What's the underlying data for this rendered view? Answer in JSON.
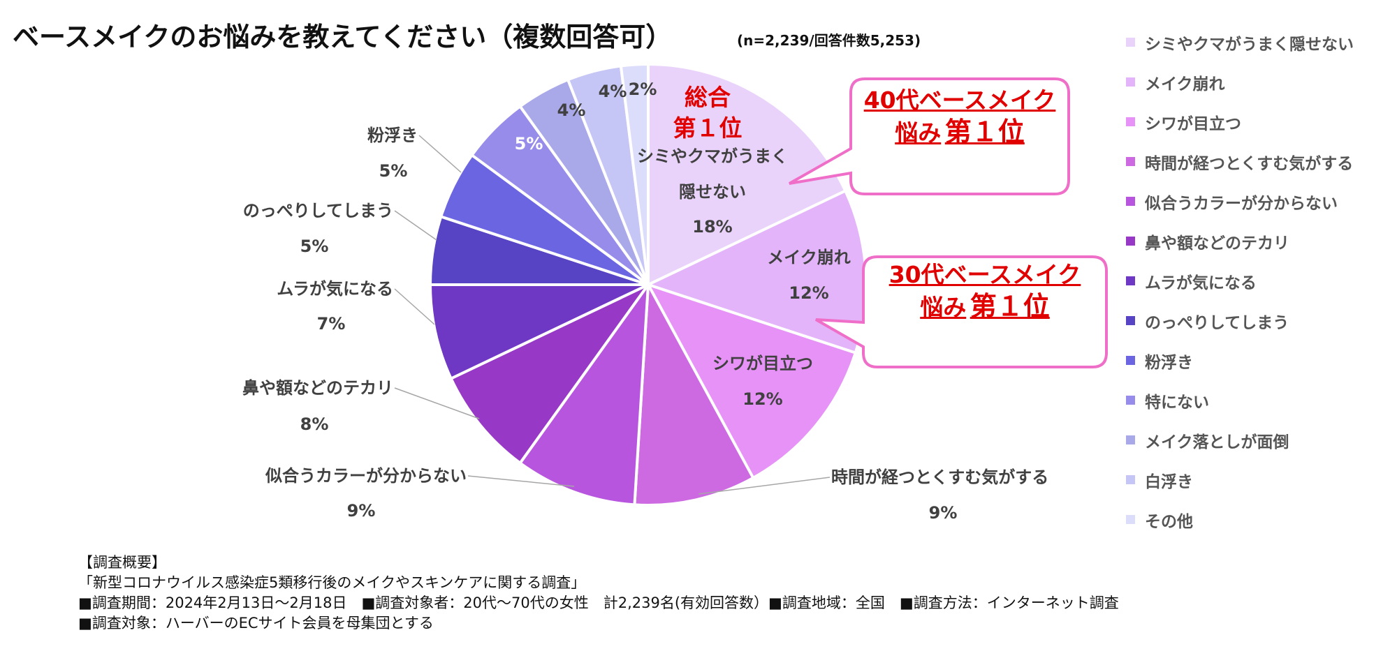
{
  "title": "ベースメイクのお悩みを教えてください（複数回答可）",
  "subtitle": "(n=2,239/回答件数5,253)",
  "chart_data": {
    "type": "pie",
    "title": "ベースメイクのお悩みを教えてください（複数回答可）",
    "subtitle": "(n=2,239/回答件数5,253)",
    "unit": "%",
    "legend_position": "right",
    "start": "top",
    "direction": "clockwise",
    "slices": [
      {
        "label": "シミやクマがうまく隠せない",
        "value": 18,
        "value_label": "18%",
        "color": "#ead3fb",
        "label_lines": [
          "シミやクマがうまく",
          "隠せない"
        ],
        "label_style": "inside"
      },
      {
        "label": "メイク崩れ",
        "value": 12,
        "value_label": "12%",
        "color": "#e3b4fa",
        "label_lines": [
          "メイク崩れ"
        ],
        "label_style": "inside"
      },
      {
        "label": "シワが目立つ",
        "value": 12,
        "value_label": "12%",
        "color": "#e692f6",
        "label_lines": [
          "シワが目立つ"
        ],
        "label_style": "inside"
      },
      {
        "label": "時間が経つとくすむ気がする",
        "value": 9,
        "value_label": "9%",
        "color": "#cd6ae2",
        "label_lines": [
          "時間が経つとくすむ気がする"
        ],
        "label_style": "outside"
      },
      {
        "label": "似合うカラーが分からない",
        "value": 9,
        "value_label": "9%",
        "color": "#b855de",
        "label_lines": [
          "似合うカラーが分からない"
        ],
        "label_style": "outside"
      },
      {
        "label": "鼻や額などのテカリ",
        "value": 8,
        "value_label": "8%",
        "color": "#9739c6",
        "label_lines": [
          "鼻や額などのテカリ"
        ],
        "label_style": "outside"
      },
      {
        "label": "ムラが気になる",
        "value": 7,
        "value_label": "7%",
        "color": "#6e38c4",
        "label_lines": [
          "ムラが気になる"
        ],
        "label_style": "outside"
      },
      {
        "label": "のっぺりしてしまう",
        "value": 5,
        "value_label": "5%",
        "color": "#5644c4",
        "label_lines": [
          "のっぺりしてしまう"
        ],
        "label_style": "outside"
      },
      {
        "label": "粉浮き",
        "value": 5,
        "value_label": "5%",
        "color": "#6c65e2",
        "label_lines": [
          "粉浮き"
        ],
        "label_style": "outside"
      },
      {
        "label": "特にない",
        "value": 5,
        "value_label": "5%",
        "color": "#978cea",
        "label_lines": [],
        "label_style": "value-only-light"
      },
      {
        "label": "メイク落としが面倒",
        "value": 4,
        "value_label": "4%",
        "color": "#a9a9ea",
        "label_lines": [],
        "label_style": "value-only"
      },
      {
        "label": "白浮き",
        "value": 4,
        "value_label": "4%",
        "color": "#c5c5f6",
        "label_lines": [],
        "label_style": "value-only"
      },
      {
        "label": "その他",
        "value": 2,
        "value_label": "2%",
        "color": "#dcdcfb",
        "label_lines": [],
        "label_style": "value-only"
      }
    ],
    "annotations": [
      {
        "text_lines": [
          "総合",
          "第１位"
        ],
        "target": "シミやクマがうまく隠せない"
      },
      {
        "text_lines": [
          "40代ベースメイク",
          "悩み",
          "第１位"
        ],
        "target": "シミやクマがうまく隠せない"
      },
      {
        "text_lines": [
          "30代ベースメイク",
          "悩み",
          "第１位"
        ],
        "target": "メイク崩れ"
      }
    ]
  },
  "callouts": {
    "overall": {
      "line1": "総合",
      "line2": "第１位"
    },
    "age40": {
      "line1": "40代ベースメイク",
      "line2": "悩み",
      "line3": "第１位"
    },
    "age30": {
      "line1": "30代ベースメイク",
      "line2": "悩み",
      "line3": "第１位"
    }
  },
  "colors": {
    "callout_text": "#e00000",
    "callout_border": "#ef6fc8",
    "leader_line": "#a6a6a6",
    "label_text": "#404040"
  },
  "notes": {
    "heading": "【調査概要】",
    "survey_name": "「新型コロナウイルス感染症5類移行後のメイクやスキンケアに関する調査」",
    "line3": "■調査期間：2024年2月13日～2月18日　■調査対象者：20代～70代の女性　計2,239名(有効回答数）■調査地域：全国　■調査方法：インターネット調査",
    "line4": "■調査対象：ハーバーのECサイト会員を母集団とする"
  }
}
